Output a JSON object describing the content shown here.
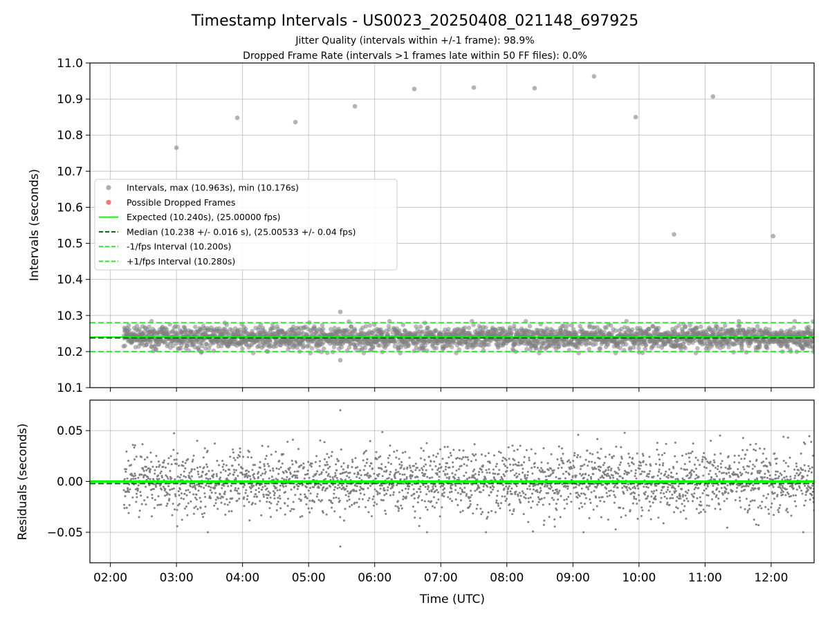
{
  "chart_data": {
    "type": "scatter",
    "title": "Timestamp Intervals - US0023_20250408_021148_697925",
    "subtitles": [
      "Jitter Quality (intervals within +/-1 frame): 98.9%",
      "Dropped Frame Rate (intervals >1 frames late within 50 FF files): 0.0%"
    ],
    "xlabel": "Time (UTC)",
    "x_ticks": [
      "02:00",
      "03:00",
      "04:00",
      "05:00",
      "06:00",
      "07:00",
      "08:00",
      "09:00",
      "10:00",
      "11:00",
      "12:00"
    ],
    "xlim_hours": [
      1.69,
      12.65
    ],
    "data_start_hours": 2.2,
    "top_panel": {
      "ylabel": "Intervals (seconds)",
      "ylim": [
        10.1,
        11.0
      ],
      "y_ticks": [
        "10.1",
        "10.2",
        "10.3",
        "10.4",
        "10.5",
        "10.6",
        "10.7",
        "10.8",
        "10.9",
        "11.0"
      ],
      "expected": 10.24,
      "median": 10.238,
      "minus_one_fps": 10.2,
      "plus_one_fps": 10.28,
      "outliers": [
        [
          3.0,
          10.765
        ],
        [
          3.92,
          10.848
        ],
        [
          4.8,
          10.836
        ],
        [
          5.7,
          10.88
        ],
        [
          6.6,
          10.928
        ],
        [
          7.5,
          10.932
        ],
        [
          8.42,
          10.93
        ],
        [
          9.32,
          10.963
        ],
        [
          9.95,
          10.85
        ],
        [
          10.53,
          10.525
        ],
        [
          11.12,
          10.907
        ],
        [
          12.03,
          10.52
        ],
        [
          5.48,
          10.31
        ],
        [
          5.48,
          10.176
        ]
      ],
      "legend": [
        {
          "label": "Intervals, max (10.963s), min (10.176s)",
          "kind": "marker",
          "color": "#a0a0a0"
        },
        {
          "label": "Possible Dropped Frames",
          "kind": "marker",
          "color": "#ff5a5a"
        },
        {
          "label": "Expected (10.240s), (25.00000 fps)",
          "kind": "solid",
          "color": "#00ff00"
        },
        {
          "label": "Median (10.238 +/- 0.016 s), (25.00533 +/- 0.04 fps)",
          "kind": "dashed",
          "color": "#006400"
        },
        {
          "label": "-1/fps Interval (10.200s)",
          "kind": "dashed",
          "color": "#22ee22"
        },
        {
          "label": "+1/fps Interval (10.280s)",
          "kind": "dashed",
          "color": "#22ee22"
        }
      ]
    },
    "bottom_panel": {
      "ylabel": "Residuals (seconds)",
      "ylim": [
        -0.08,
        0.08
      ],
      "y_ticks": [
        "−0.05",
        "0.00",
        "0.05"
      ],
      "residual_std": 0.016,
      "residual_outliers": [
        [
          5.48,
          0.07
        ],
        [
          5.48,
          -0.064
        ]
      ],
      "zero_line": 0.0,
      "median_offset": -0.002
    },
    "colors": {
      "points": "#808080",
      "expected": "#00ff00",
      "median": "#006400",
      "fps_bounds": "#22ee22",
      "grid": "#b0b0b0"
    },
    "grid": true
  }
}
